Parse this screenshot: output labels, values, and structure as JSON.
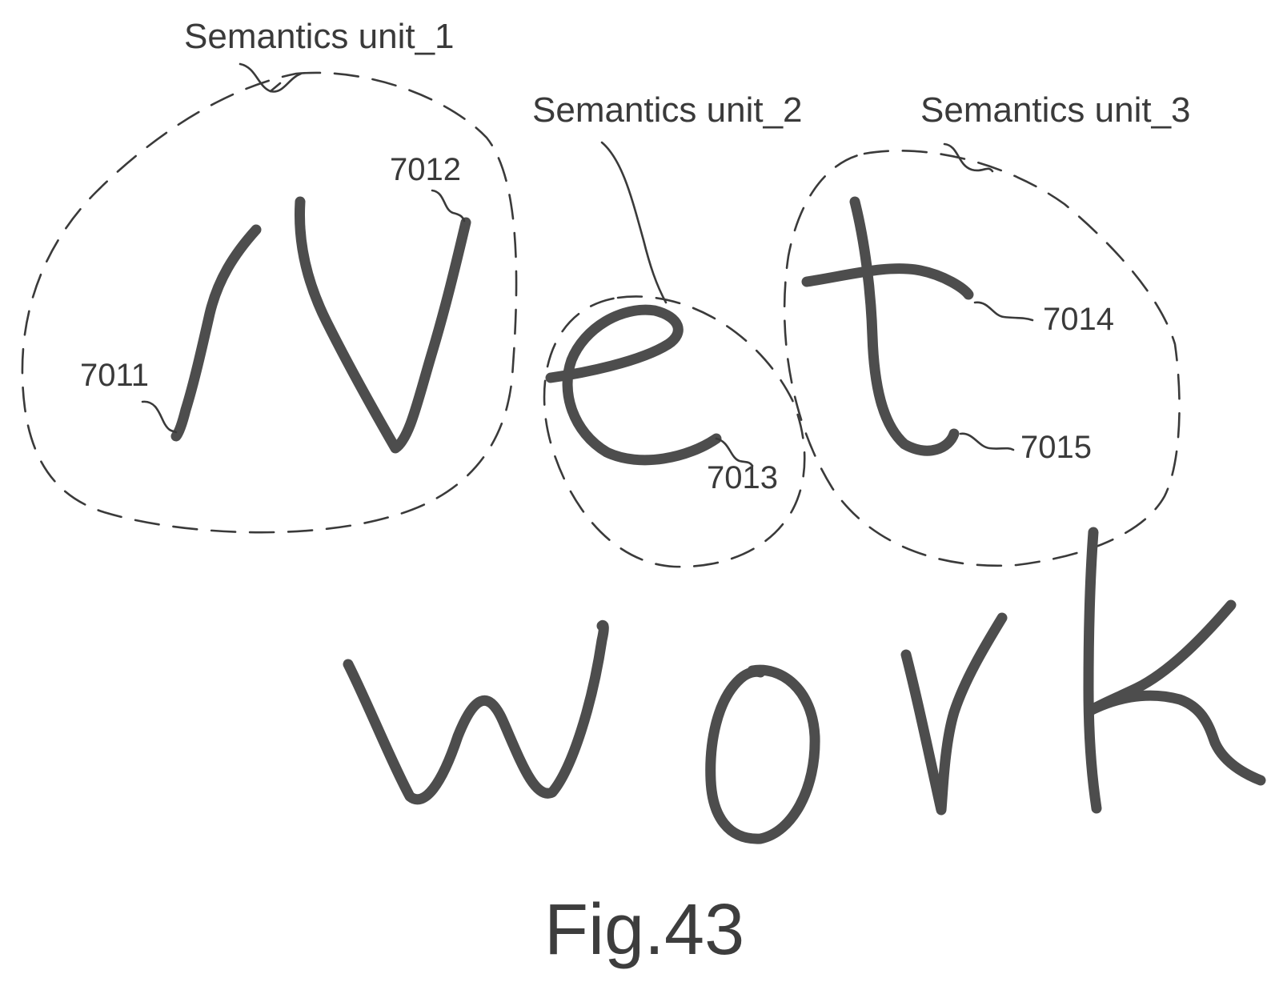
{
  "diagram": {
    "handwriting": {
      "top_line": "Net",
      "bottom_line": "work"
    },
    "semantic_units": [
      {
        "label": "Semantics unit_1"
      },
      {
        "label": "Semantics unit_2"
      },
      {
        "label": "Semantics unit_3"
      }
    ],
    "stroke_refs": [
      "7011",
      "7012",
      "7013",
      "7014",
      "7015"
    ],
    "figure_label": "Fig.43",
    "colors": {
      "ink": "#4d4d4d",
      "line": "#3a3a3a",
      "background": "#ffffff"
    }
  }
}
